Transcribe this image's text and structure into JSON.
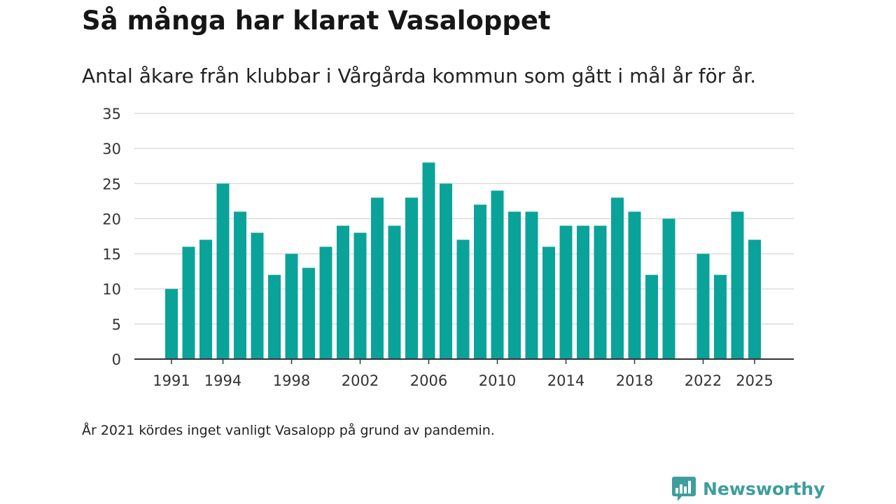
{
  "title": "Så många har klarat Vasaloppet",
  "subtitle": "Antal åkare från klubbar i Vårgårda kommun som gått i mål år för år.",
  "note": "År 2021 kördes inget vanligt Vasalopp på grund av pandemin.",
  "brand": {
    "name": "Newsworthy",
    "color": "#3e9e9c",
    "icon": "bar-chart-speech-bubble-icon"
  },
  "colors": {
    "bar": "#0aa39a",
    "grid": "#dddddd",
    "axis": "#333333",
    "text": "#333333"
  },
  "chart_data": {
    "type": "bar",
    "title": "Så många har klarat Vasaloppet",
    "subtitle": "Antal åkare från klubbar i Vårgårda kommun som gått i mål år för år.",
    "xlabel": "",
    "ylabel": "",
    "ylim": [
      0,
      35
    ],
    "yticks": [
      0,
      5,
      10,
      15,
      20,
      25,
      30,
      35
    ],
    "xticks": [
      1991,
      1994,
      1998,
      2002,
      2006,
      2010,
      2014,
      2018,
      2022,
      2025
    ],
    "grid": true,
    "legend": "none",
    "categories": [
      1991,
      1992,
      1993,
      1994,
      1995,
      1996,
      1997,
      1998,
      1999,
      2000,
      2001,
      2002,
      2003,
      2004,
      2005,
      2006,
      2007,
      2008,
      2009,
      2010,
      2011,
      2012,
      2013,
      2014,
      2015,
      2016,
      2017,
      2018,
      2019,
      2020,
      2021,
      2022,
      2023,
      2024,
      2025
    ],
    "values": [
      10,
      16,
      17,
      25,
      21,
      18,
      12,
      15,
      13,
      16,
      19,
      18,
      23,
      19,
      23,
      28,
      25,
      17,
      22,
      24,
      21,
      21,
      16,
      19,
      19,
      19,
      23,
      21,
      12,
      20,
      null,
      15,
      12,
      21,
      17
    ]
  }
}
